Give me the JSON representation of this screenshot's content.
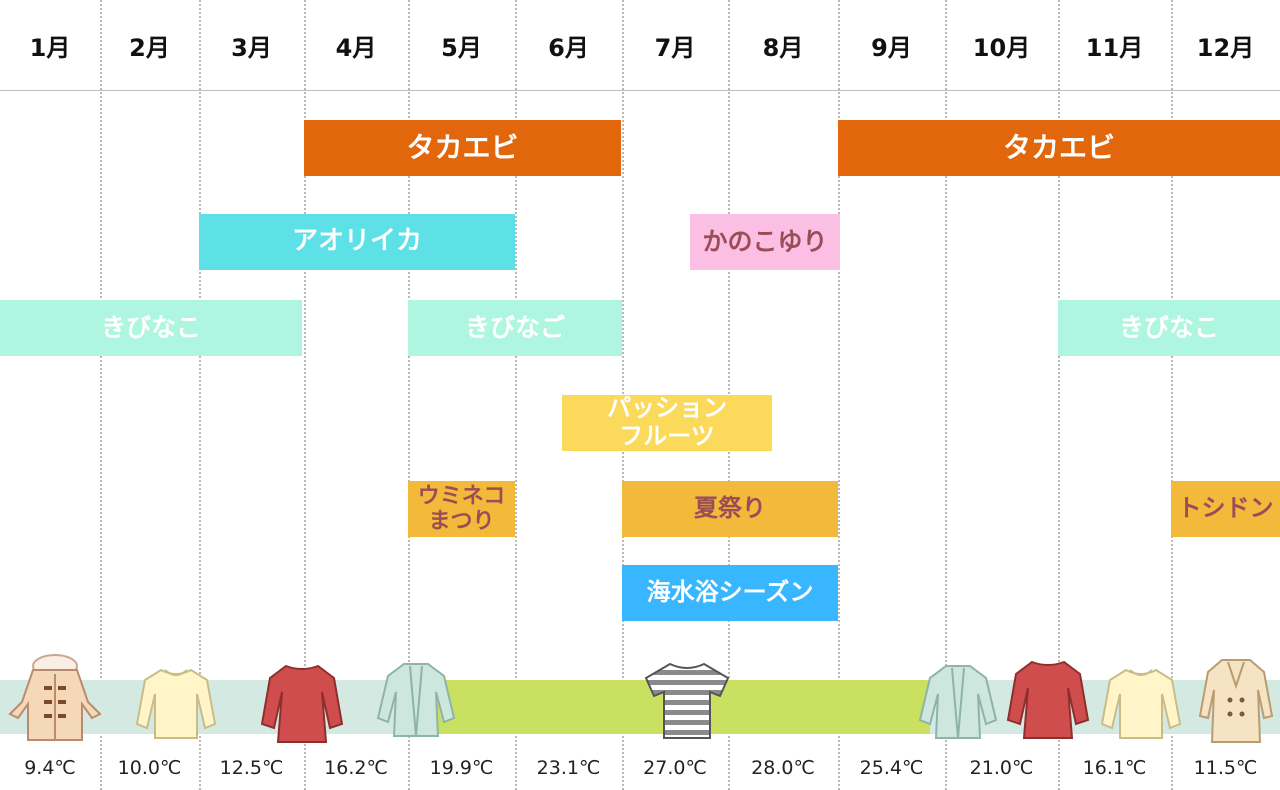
{
  "months": [
    "1月",
    "2月",
    "3月",
    "4月",
    "5月",
    "6月",
    "7月",
    "8月",
    "9月",
    "10月",
    "11月",
    "12月"
  ],
  "events": {
    "takaebi_spring": "タカエビ",
    "takaebi_autumn": "タカエビ",
    "aoriika": "アオリイカ",
    "kanokoyuri": "かのこゆり",
    "kibinago_winter": "きびなこ",
    "kibinago_spring": "きびなご",
    "kibinago_late": "きびなこ",
    "passionfruit": [
      "パッション",
      "フルーツ"
    ],
    "umineko_matsuri": [
      "ウミネコ",
      "まつり"
    ],
    "natsumatsuri": "夏祭り",
    "toshidon": "トシドン",
    "kaisuiyoku": "海水浴シーズン"
  },
  "temperatures": [
    "9.4℃",
    "10.0℃",
    "12.5℃",
    "16.2℃",
    "19.9℃",
    "23.1℃",
    "27.0℃",
    "28.0℃",
    "25.4℃",
    "21.0℃",
    "16.1℃",
    "11.5℃"
  ],
  "clothing_icons": [
    "duffle-coat-icon",
    "knit-sweater-icon",
    "knit-sweater-icon",
    "cardigan-icon",
    "striped-tshirt-icon",
    "cardigan-icon",
    "knit-sweater-icon",
    "knit-sweater-icon",
    "trench-coat-icon"
  ],
  "colors": {
    "takaebi": "#e2660b",
    "aoriika": "#5de0e6",
    "kanokoyuri": "#fcbfe4",
    "kibinago": "#aff6e0",
    "passionfruit": "#fbd95a",
    "festival": "#f2b93b",
    "beach_season": "#38b6ff",
    "band_cool": "#d4e9e1",
    "band_warm": "#c9e060"
  }
}
